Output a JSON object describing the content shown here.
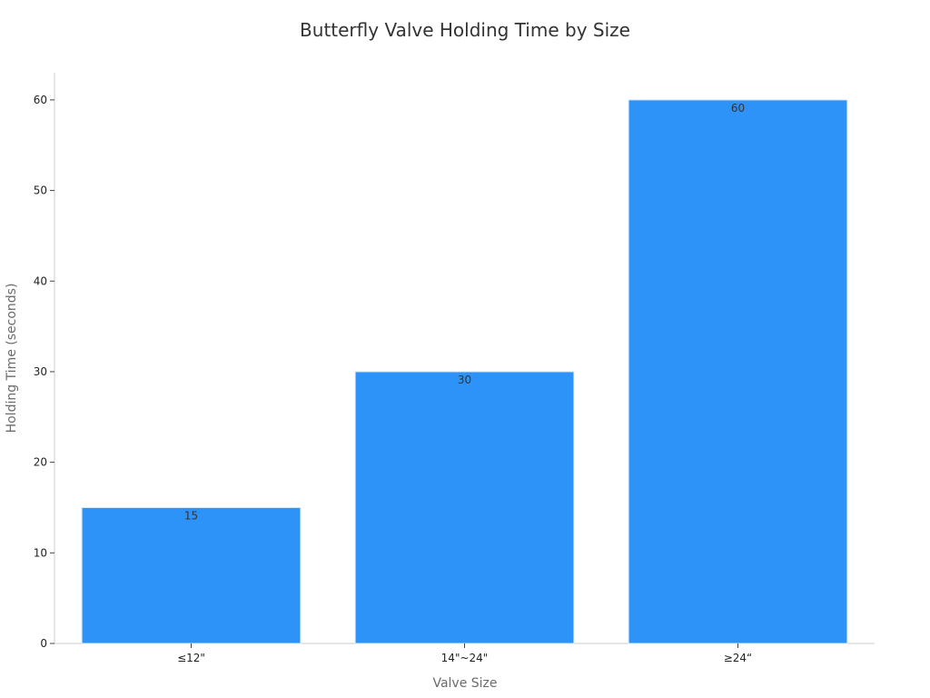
{
  "chart_data": {
    "type": "bar",
    "title": "Butterfly Valve Holding Time by Size",
    "xlabel": "Valve Size",
    "ylabel": "Holding Time (seconds)",
    "categories": [
      "≤12\"",
      "14\"~24\"",
      "≥24“"
    ],
    "values": [
      15,
      30,
      60
    ],
    "ylim": [
      0,
      63
    ],
    "yticks": [
      0,
      10,
      20,
      30,
      40,
      50,
      60
    ],
    "grid": false,
    "show_data_labels": true,
    "colors": {
      "bar": "#2e93f8",
      "bar_edge": "#d9ecff"
    }
  }
}
